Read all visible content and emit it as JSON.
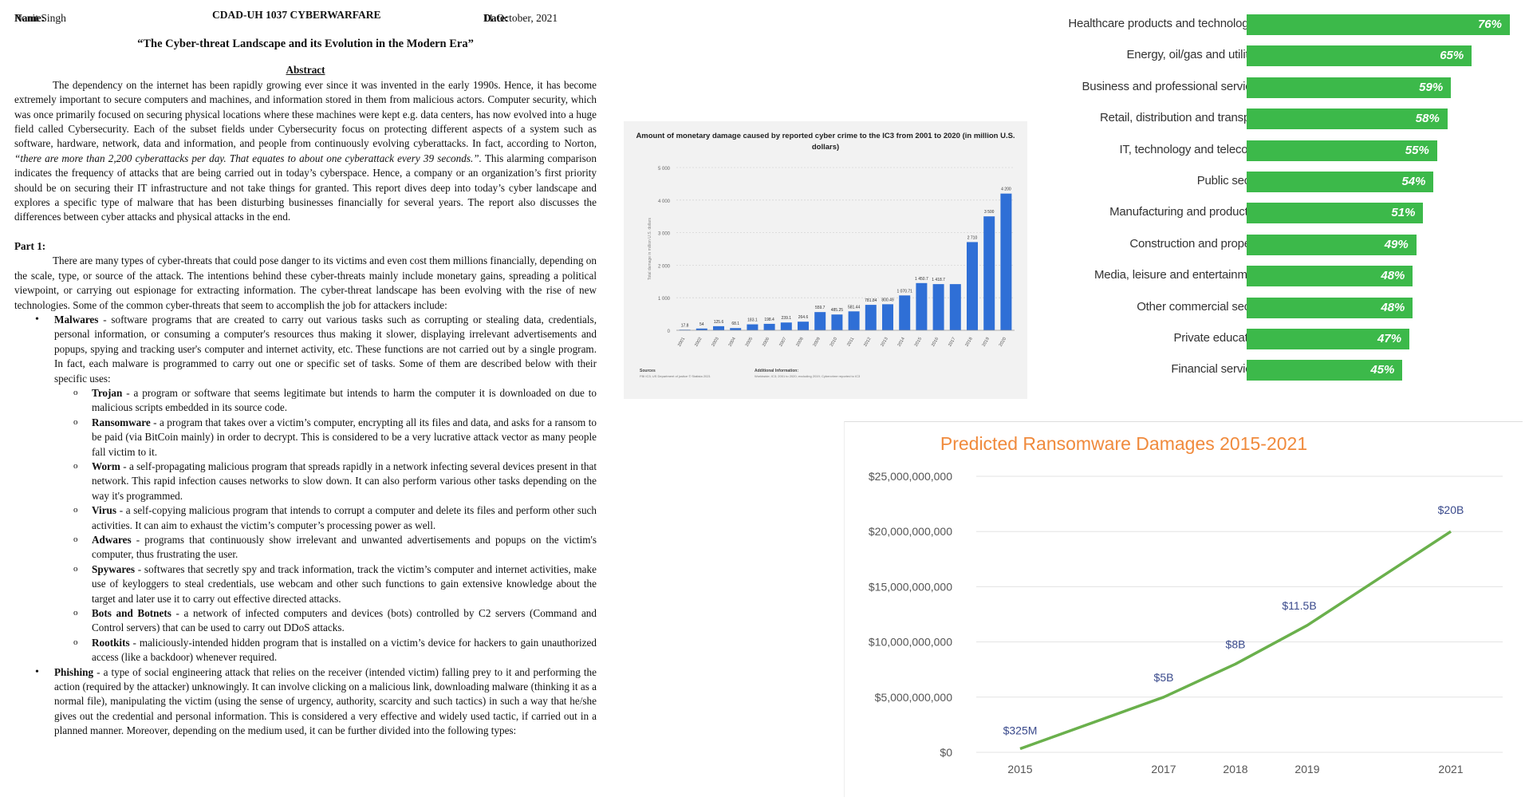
{
  "doc": {
    "name_label": "Name:",
    "name_value": "Ronit Singh",
    "course": "CDAD-UH 1037 CYBERWARFARE",
    "date_label": "Date:",
    "date_value": "11 October, 2021",
    "title": "“The Cyber-threat Landscape and its Evolution in the Modern Era”",
    "abstract_heading": "Abstract",
    "abstract_p1": "The dependency on the internet has been rapidly growing ever since it was invented in the early 1990s. Hence, it has become extremely important to secure computers and machines, and information stored in them from malicious actors. Computer security, which was once primarily focused on securing physical locations where these machines were kept e.g. data centers, has now evolved into a huge field called Cybersecurity. Each of the subset fields under Cybersecurity focus on protecting different aspects of a system such as software, hardware, network, data and information, and people from continuously evolving cyberattacks. In fact, according to Norton, ",
    "abstract_quote": "“there are more than 2,200 cyberattacks per day. That equates to about one cyberattack every 39 seconds.”.",
    "abstract_p2": " This alarming comparison indicates the frequency of attacks that are being carried out in today’s cyberspace. Hence, a company or an organization’s first priority should be on securing their IT infrastructure and not take things for granted. This report dives deep into today’s cyber landscape and explores a specific type of malware that has been disturbing businesses financially for several years. The report also discusses the differences between cyber attacks and physical attacks in the end.",
    "part1_heading": "Part 1:",
    "part1_p": "There are many types of cyber-threats that could pose danger to its victims and even cost them millions financially, depending on the scale, type, or source of the attack. The intentions behind these cyber-threats mainly include monetary gains, spreading a political viewpoint, or carrying out espionage for extracting information. The cyber-threat landscape has been evolving with the rise of new technologies. Some of the common cyber-threats that seem to accomplish the job for attackers include:",
    "malwares_term": "Malwares",
    "malwares_text": " - software programs that are created to carry out various tasks such as corrupting or stealing data, credentials, personal information, or consuming a computer's resources thus making it slower, displaying irrelevant advertisements and popups, spying and tracking user's computer and internet activity, etc. These functions are not carried out by a single program. In fact, each malware is programmed to carry out one or specific set of tasks. Some of them are described below with their specific uses:",
    "subitems": [
      {
        "term": "Trojan",
        "text": " - a program or software that seems legitimate but intends to harm the computer it is downloaded on due to malicious scripts embedded in its source code."
      },
      {
        "term": "Ransomware",
        "text": " - a program that takes over a victim’s computer, encrypting all its files and data, and asks for a ransom to be paid (via BitCoin mainly) in order to decrypt. This is considered to be a very lucrative attack vector as many people fall victim to it."
      },
      {
        "term": "Worm",
        "text": " - a self-propagating malicious program that spreads rapidly in a network infecting several devices present in that network. This rapid infection causes networks to slow down. It can also perform various other tasks depending on the way it's programmed."
      },
      {
        "term": "Virus",
        "text": " - a self-copying malicious program that intends to corrupt a computer and delete its files and perform other such activities. It can aim to exhaust the victim’s computer’s processing power as well."
      },
      {
        "term": "Adwares",
        "text": " - programs that continuously show irrelevant and unwanted advertisements and popups on the victim's computer, thus frustrating the user."
      },
      {
        "term": "Spywares",
        "text": " - softwares that secretly spy and track information, track the victim’s computer and internet activities, make use of keyloggers to steal credentials, use webcam and other such functions to gain extensive knowledge about the target and later use it to carry out effective directed attacks."
      },
      {
        "term": "Bots and Botnets",
        "text": " - a network of infected computers and devices (bots) controlled by C2 servers (Command and Control servers) that can be used to carry out DDoS attacks."
      },
      {
        "term": "Rootkits",
        "text": " - maliciously-intended hidden program that is installed on a victim’s device for hackers to gain unauthorized access (like a backdoor) whenever required."
      }
    ],
    "phishing_term": "Phishing",
    "phishing_text": " - a type of social engineering attack that relies on the receiver (intended victim) falling prey to it and performing the action (required by the attacker) unknowingly. It can involve clicking on a malicious link, downloading malware (thinking it as a normal file), manipulating the victim (using the sense of urgency, authority, scarcity and such tactics) in such a way that he/she gives out the credential and personal information. This is considered a very effective and widely used tactic, if carried out in a planned manner. Moreover, depending on the medium used, it can be further divided into the following types:"
  },
  "chart_data": [
    {
      "type": "bar",
      "title": "Amount of monetary damage caused by reported cyber crime to the IC3 from 2001 to 2020 (in million U.S. dollars)",
      "ylabel": "Total damage in million U.S. dollars",
      "categories": [
        "2001",
        "2002",
        "2003",
        "2004",
        "2005",
        "2006",
        "2007",
        "2008",
        "2009",
        "2010",
        "2011",
        "2012",
        "2013",
        "2014",
        "2015",
        "2016",
        "2017",
        "2018",
        "2019",
        "2020"
      ],
      "values": [
        17.8,
        54,
        125.6,
        68.1,
        183.1,
        198.4,
        239.1,
        264.6,
        559.7,
        485.25,
        581.44,
        781.84,
        800.49,
        1070.71,
        1450.7,
        1418.7,
        1418.7,
        2710,
        3500,
        4200
      ],
      "data_labels": [
        "17.8",
        "54",
        "125.6",
        "68.1",
        "183.1",
        "198.4",
        "239.1",
        "264.6",
        "559.7",
        "485.25",
        "581.44",
        "781.84",
        "800.49",
        "1 070.71",
        "1 450.7",
        "1 418.7",
        "",
        "2 710",
        "3 500",
        "4 200"
      ],
      "yticks": [
        "0",
        "1 000",
        "2 000",
        "3 000",
        "4 000",
        "5 000"
      ],
      "ylim": [
        0,
        5000
      ],
      "color": "#2f6fd6",
      "footer_sources_label": "Sources",
      "footer_sources": "FBI IC3; US Department of justice © Statista 2021",
      "footer_info_label": "Additional Information:",
      "footer_info": "Worldwide; IC3; 2001 to 2020; excluding 2019; Cybercrime reported to IC3"
    },
    {
      "type": "bar",
      "orientation": "horizontal",
      "categories": [
        "Healthcare products and technologies",
        "Energy, oil/gas and utilities",
        "Business and professional services",
        "Retail, distribution and transport",
        "IT, technology and telecoms",
        "Public sector",
        "Manufacturing and production",
        "Construction and property",
        "Media, leisure and entertainment",
        "Other commercial sector",
        "Private education",
        "Financial services"
      ],
      "values": [
        76,
        65,
        59,
        58,
        55,
        54,
        51,
        49,
        48,
        48,
        47,
        45
      ],
      "value_labels": [
        "76%",
        "65%",
        "59%",
        "58%",
        "55%",
        "54%",
        "51%",
        "49%",
        "48%",
        "48%",
        "47%",
        "45%"
      ],
      "color": "#3cb94a"
    },
    {
      "type": "line",
      "title": "Predicted Ransomware Damages 2015-2021",
      "categories": [
        "2015",
        "2017",
        "2018",
        "2019",
        "2021"
      ],
      "values": [
        325000000,
        5000000000,
        8000000000,
        11500000000,
        20000000000
      ],
      "point_labels": [
        "$325M",
        "$5B",
        "$8B",
        "$11.5B",
        "$20B"
      ],
      "yticks": [
        "$0",
        "$5,000,000,000",
        "$10,000,000,000",
        "$15,000,000,000",
        "$20,000,000,000",
        "$25,000,000,000"
      ],
      "ylim": [
        0,
        25000000000
      ],
      "color": "#6ab04c",
      "label_color": "#3a4a8c",
      "title_color": "#f08a3c"
    }
  ]
}
